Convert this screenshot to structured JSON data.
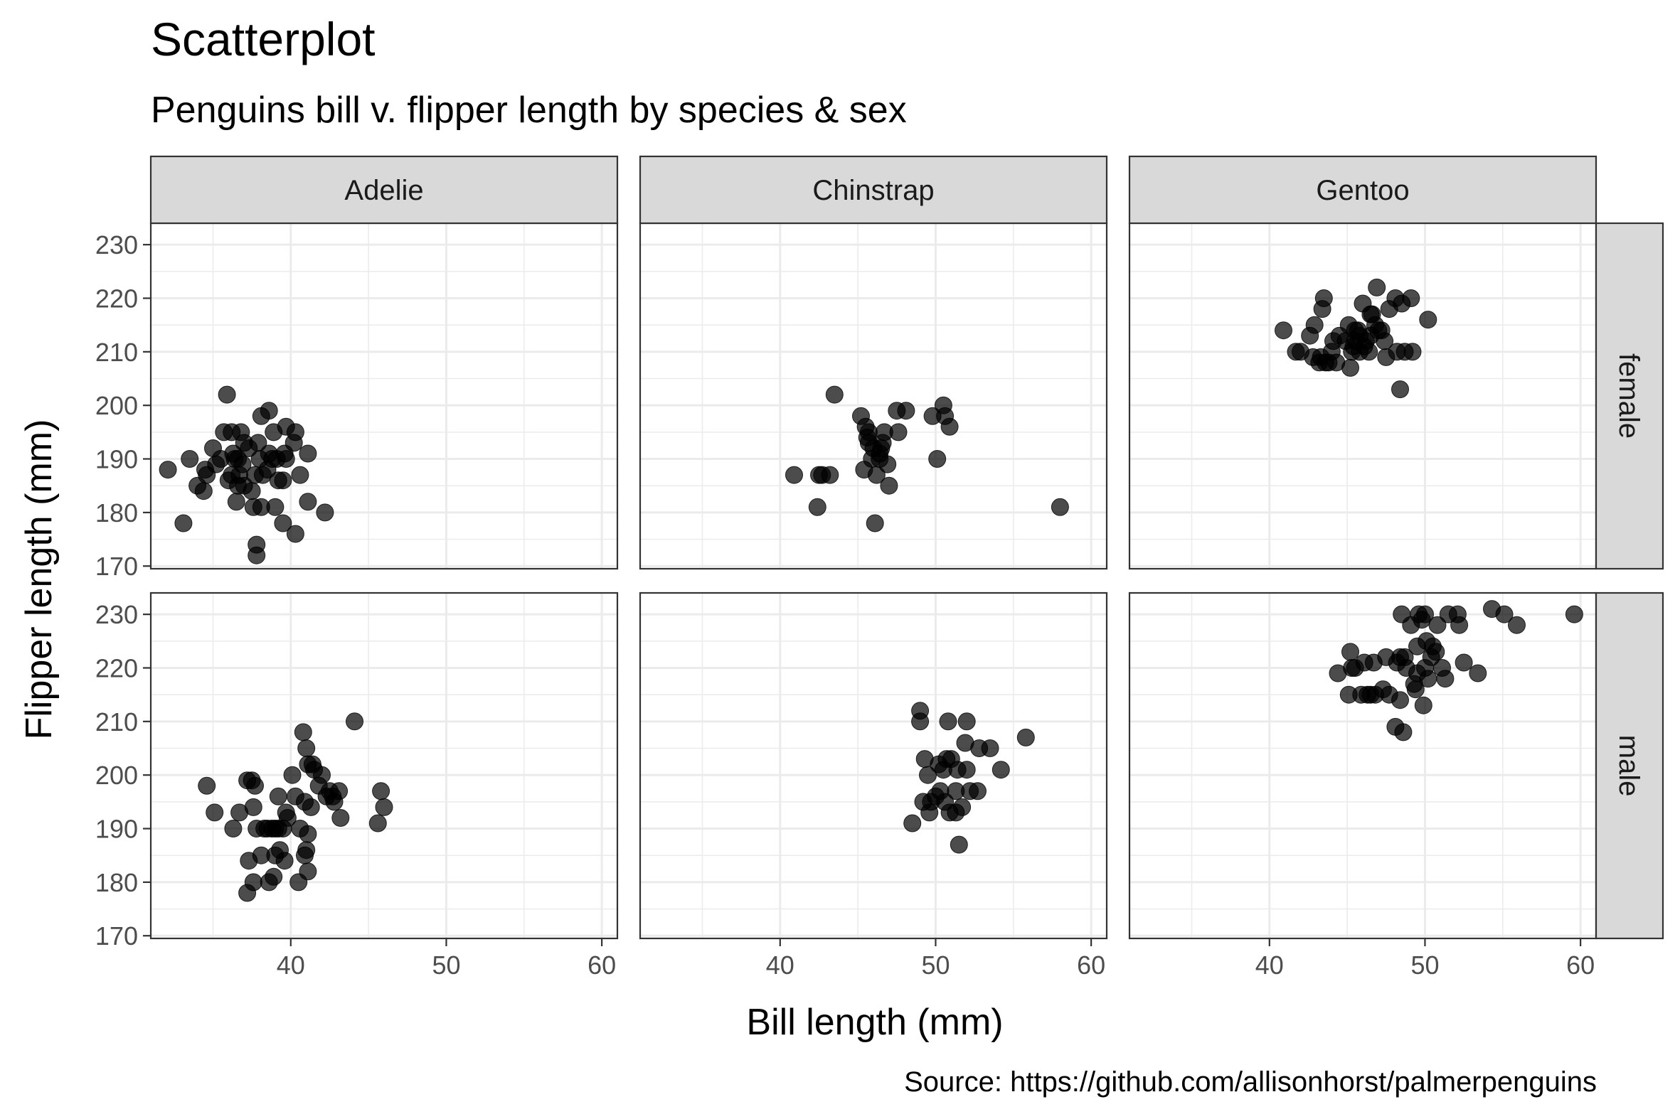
{
  "chart_data": {
    "type": "scatter",
    "title": "Scatterplot",
    "subtitle": "Penguins bill v. flipper length by species & sex",
    "xlabel": "Bill length (mm)",
    "ylabel": "Flipper length (mm)",
    "caption": "Source: https://github.com/allisonhorst/palmerpenguins",
    "xlim": [
      31,
      61
    ],
    "ylim": [
      169.5,
      234
    ],
    "x_ticks": [
      40,
      50,
      60
    ],
    "y_ticks": [
      170,
      180,
      190,
      200,
      210,
      220,
      230
    ],
    "grid": true,
    "facet_columns": [
      "Adelie",
      "Chinstrap",
      "Gentoo"
    ],
    "facet_rows": [
      "female",
      "male"
    ],
    "panels": [
      {
        "species": "Adelie",
        "sex": "female",
        "points": [
          [
            32.1,
            188
          ],
          [
            33.1,
            178
          ],
          [
            33.5,
            190
          ],
          [
            34.0,
            185
          ],
          [
            34.4,
            184
          ],
          [
            34.6,
            187
          ],
          [
            35.0,
            192
          ],
          [
            35.2,
            189
          ],
          [
            35.5,
            190
          ],
          [
            35.7,
            195
          ],
          [
            35.9,
            202
          ],
          [
            36.0,
            186
          ],
          [
            36.2,
            187
          ],
          [
            36.2,
            195
          ],
          [
            36.4,
            190
          ],
          [
            36.5,
            182
          ],
          [
            36.6,
            185
          ],
          [
            36.6,
            190
          ],
          [
            36.7,
            187
          ],
          [
            36.8,
            195
          ],
          [
            36.9,
            189
          ],
          [
            37.0,
            185
          ],
          [
            37.0,
            193
          ],
          [
            37.3,
            192
          ],
          [
            37.5,
            184
          ],
          [
            37.6,
            181
          ],
          [
            37.7,
            187
          ],
          [
            37.8,
            174
          ],
          [
            37.8,
            172
          ],
          [
            37.9,
            193
          ],
          [
            38.1,
            198
          ],
          [
            38.1,
            181
          ],
          [
            38.2,
            187
          ],
          [
            38.5,
            188
          ],
          [
            38.6,
            191
          ],
          [
            38.6,
            199
          ],
          [
            38.8,
            190
          ],
          [
            38.9,
            195
          ],
          [
            39.0,
            181
          ],
          [
            39.1,
            190
          ],
          [
            39.2,
            186
          ],
          [
            39.5,
            178
          ],
          [
            39.5,
            186
          ],
          [
            39.6,
            191
          ],
          [
            39.7,
            196
          ],
          [
            39.7,
            190
          ],
          [
            40.2,
            193
          ],
          [
            40.3,
            176
          ],
          [
            40.6,
            187
          ],
          [
            41.1,
            191
          ],
          [
            41.1,
            182
          ],
          [
            42.2,
            180
          ],
          [
            40.3,
            195
          ],
          [
            38.0,
            190
          ],
          [
            36.3,
            191
          ],
          [
            34.5,
            188
          ]
        ]
      },
      {
        "species": "Adelie",
        "sex": "male",
        "points": [
          [
            34.6,
            198
          ],
          [
            35.1,
            193
          ],
          [
            36.3,
            190
          ],
          [
            36.7,
            193
          ],
          [
            37.2,
            199
          ],
          [
            37.2,
            178
          ],
          [
            37.3,
            184
          ],
          [
            37.5,
            199
          ],
          [
            37.6,
            194
          ],
          [
            37.6,
            180
          ],
          [
            37.7,
            198
          ],
          [
            37.8,
            190
          ],
          [
            38.1,
            185
          ],
          [
            38.3,
            190
          ],
          [
            38.5,
            190
          ],
          [
            38.6,
            180
          ],
          [
            38.8,
            190
          ],
          [
            38.9,
            181
          ],
          [
            39.0,
            185
          ],
          [
            39.0,
            190
          ],
          [
            39.2,
            196
          ],
          [
            39.2,
            190
          ],
          [
            39.3,
            186
          ],
          [
            39.5,
            190
          ],
          [
            39.6,
            184
          ],
          [
            39.8,
            192
          ],
          [
            40.1,
            200
          ],
          [
            40.3,
            196
          ],
          [
            40.5,
            180
          ],
          [
            40.6,
            190
          ],
          [
            40.8,
            208
          ],
          [
            41.0,
            205
          ],
          [
            41.1,
            202
          ],
          [
            41.1,
            189
          ],
          [
            41.3,
            194
          ],
          [
            41.4,
            202
          ],
          [
            41.5,
            201
          ],
          [
            41.8,
            198
          ],
          [
            42.0,
            200
          ],
          [
            42.3,
            196
          ],
          [
            42.5,
            197
          ],
          [
            42.7,
            196
          ],
          [
            42.8,
            195
          ],
          [
            43.1,
            197
          ],
          [
            43.2,
            192
          ],
          [
            44.1,
            210
          ],
          [
            45.6,
            191
          ],
          [
            45.8,
            197
          ],
          [
            46.0,
            194
          ],
          [
            40.9,
            185
          ],
          [
            41.1,
            182
          ],
          [
            40.9,
            195
          ],
          [
            39.7,
            193
          ],
          [
            41.0,
            186
          ]
        ]
      },
      {
        "species": "Chinstrap",
        "sex": "female",
        "points": [
          [
            40.9,
            187
          ],
          [
            42.4,
            181
          ],
          [
            42.5,
            187
          ],
          [
            42.7,
            187
          ],
          [
            43.2,
            187
          ],
          [
            43.5,
            202
          ],
          [
            45.2,
            198
          ],
          [
            45.4,
            188
          ],
          [
            45.5,
            196
          ],
          [
            45.6,
            194
          ],
          [
            45.7,
            195
          ],
          [
            45.9,
            190
          ],
          [
            46.1,
            178
          ],
          [
            46.2,
            187
          ],
          [
            46.4,
            190
          ],
          [
            46.4,
            191
          ],
          [
            46.5,
            192
          ],
          [
            46.6,
            193
          ],
          [
            46.7,
            195
          ],
          [
            46.9,
            189
          ],
          [
            47.0,
            185
          ],
          [
            47.5,
            199
          ],
          [
            47.6,
            195
          ],
          [
            48.1,
            199
          ],
          [
            49.8,
            198
          ],
          [
            50.1,
            190
          ],
          [
            50.5,
            200
          ],
          [
            50.6,
            198
          ],
          [
            50.9,
            196
          ],
          [
            58.0,
            181
          ],
          [
            45.7,
            193
          ],
          [
            46.0,
            192
          ]
        ]
      },
      {
        "species": "Chinstrap",
        "sex": "male",
        "points": [
          [
            48.5,
            191
          ],
          [
            49.0,
            212
          ],
          [
            49.0,
            210
          ],
          [
            49.2,
            195
          ],
          [
            49.3,
            203
          ],
          [
            49.5,
            200
          ],
          [
            49.6,
            193
          ],
          [
            49.7,
            195
          ],
          [
            50.0,
            196
          ],
          [
            50.2,
            202
          ],
          [
            50.3,
            197
          ],
          [
            50.5,
            201
          ],
          [
            50.7,
            203
          ],
          [
            50.8,
            210
          ],
          [
            50.9,
            193
          ],
          [
            51.0,
            203
          ],
          [
            51.3,
            197
          ],
          [
            51.4,
            201
          ],
          [
            51.5,
            187
          ],
          [
            51.7,
            194
          ],
          [
            51.9,
            206
          ],
          [
            52.0,
            210
          ],
          [
            52.0,
            201
          ],
          [
            52.2,
            197
          ],
          [
            52.7,
            197
          ],
          [
            52.8,
            205
          ],
          [
            53.5,
            205
          ],
          [
            54.2,
            201
          ],
          [
            55.8,
            207
          ],
          [
            51.3,
            193
          ],
          [
            50.6,
            195
          ]
        ]
      },
      {
        "species": "Gentoo",
        "sex": "female",
        "points": [
          [
            40.9,
            214
          ],
          [
            41.7,
            210
          ],
          [
            42.0,
            210
          ],
          [
            42.6,
            213
          ],
          [
            42.8,
            209
          ],
          [
            42.9,
            215
          ],
          [
            43.2,
            208
          ],
          [
            43.3,
            209
          ],
          [
            43.4,
            218
          ],
          [
            43.5,
            220
          ],
          [
            43.6,
            208
          ],
          [
            43.8,
            208
          ],
          [
            44.0,
            210
          ],
          [
            44.3,
            208
          ],
          [
            44.5,
            213
          ],
          [
            44.9,
            212
          ],
          [
            45.1,
            215
          ],
          [
            45.2,
            207
          ],
          [
            45.3,
            210
          ],
          [
            45.4,
            211
          ],
          [
            45.5,
            212
          ],
          [
            45.5,
            214
          ],
          [
            45.7,
            214
          ],
          [
            45.8,
            210
          ],
          [
            46.0,
            219
          ],
          [
            46.1,
            211
          ],
          [
            46.2,
            212
          ],
          [
            46.4,
            210
          ],
          [
            46.5,
            213
          ],
          [
            46.6,
            217
          ],
          [
            46.8,
            215
          ],
          [
            46.9,
            222
          ],
          [
            47.2,
            214
          ],
          [
            47.4,
            212
          ],
          [
            47.5,
            209
          ],
          [
            47.7,
            218
          ],
          [
            48.1,
            220
          ],
          [
            48.2,
            210
          ],
          [
            48.4,
            203
          ],
          [
            48.5,
            219
          ],
          [
            48.7,
            210
          ],
          [
            49.1,
            220
          ],
          [
            49.2,
            210
          ],
          [
            50.2,
            216
          ],
          [
            46.5,
            217
          ],
          [
            45.8,
            213
          ],
          [
            44.1,
            212
          ],
          [
            47.0,
            214
          ]
        ]
      },
      {
        "species": "Gentoo",
        "sex": "male",
        "points": [
          [
            44.4,
            219
          ],
          [
            45.1,
            215
          ],
          [
            45.2,
            223
          ],
          [
            45.3,
            220
          ],
          [
            45.5,
            220
          ],
          [
            45.9,
            215
          ],
          [
            46.1,
            221
          ],
          [
            46.3,
            215
          ],
          [
            46.5,
            215
          ],
          [
            46.7,
            221
          ],
          [
            46.8,
            215
          ],
          [
            47.3,
            216
          ],
          [
            47.5,
            222
          ],
          [
            47.7,
            215
          ],
          [
            48.1,
            209
          ],
          [
            48.2,
            221
          ],
          [
            48.4,
            214
          ],
          [
            48.5,
            230
          ],
          [
            48.6,
            208
          ],
          [
            48.7,
            222
          ],
          [
            48.8,
            220
          ],
          [
            49.1,
            228
          ],
          [
            49.3,
            217
          ],
          [
            49.4,
            216
          ],
          [
            49.5,
            224
          ],
          [
            49.6,
            230
          ],
          [
            49.8,
            229
          ],
          [
            49.9,
            213
          ],
          [
            50.0,
            230
          ],
          [
            50.1,
            225
          ],
          [
            50.2,
            218
          ],
          [
            50.4,
            222
          ],
          [
            50.5,
            224
          ],
          [
            50.7,
            223
          ],
          [
            50.8,
            228
          ],
          [
            51.1,
            220
          ],
          [
            51.3,
            218
          ],
          [
            51.5,
            230
          ],
          [
            52.1,
            230
          ],
          [
            52.2,
            228
          ],
          [
            52.5,
            221
          ],
          [
            53.4,
            219
          ],
          [
            54.3,
            231
          ],
          [
            55.1,
            230
          ],
          [
            55.9,
            228
          ],
          [
            59.6,
            230
          ],
          [
            49.5,
            219
          ],
          [
            50.0,
            220
          ],
          [
            48.4,
            222
          ]
        ]
      }
    ]
  }
}
